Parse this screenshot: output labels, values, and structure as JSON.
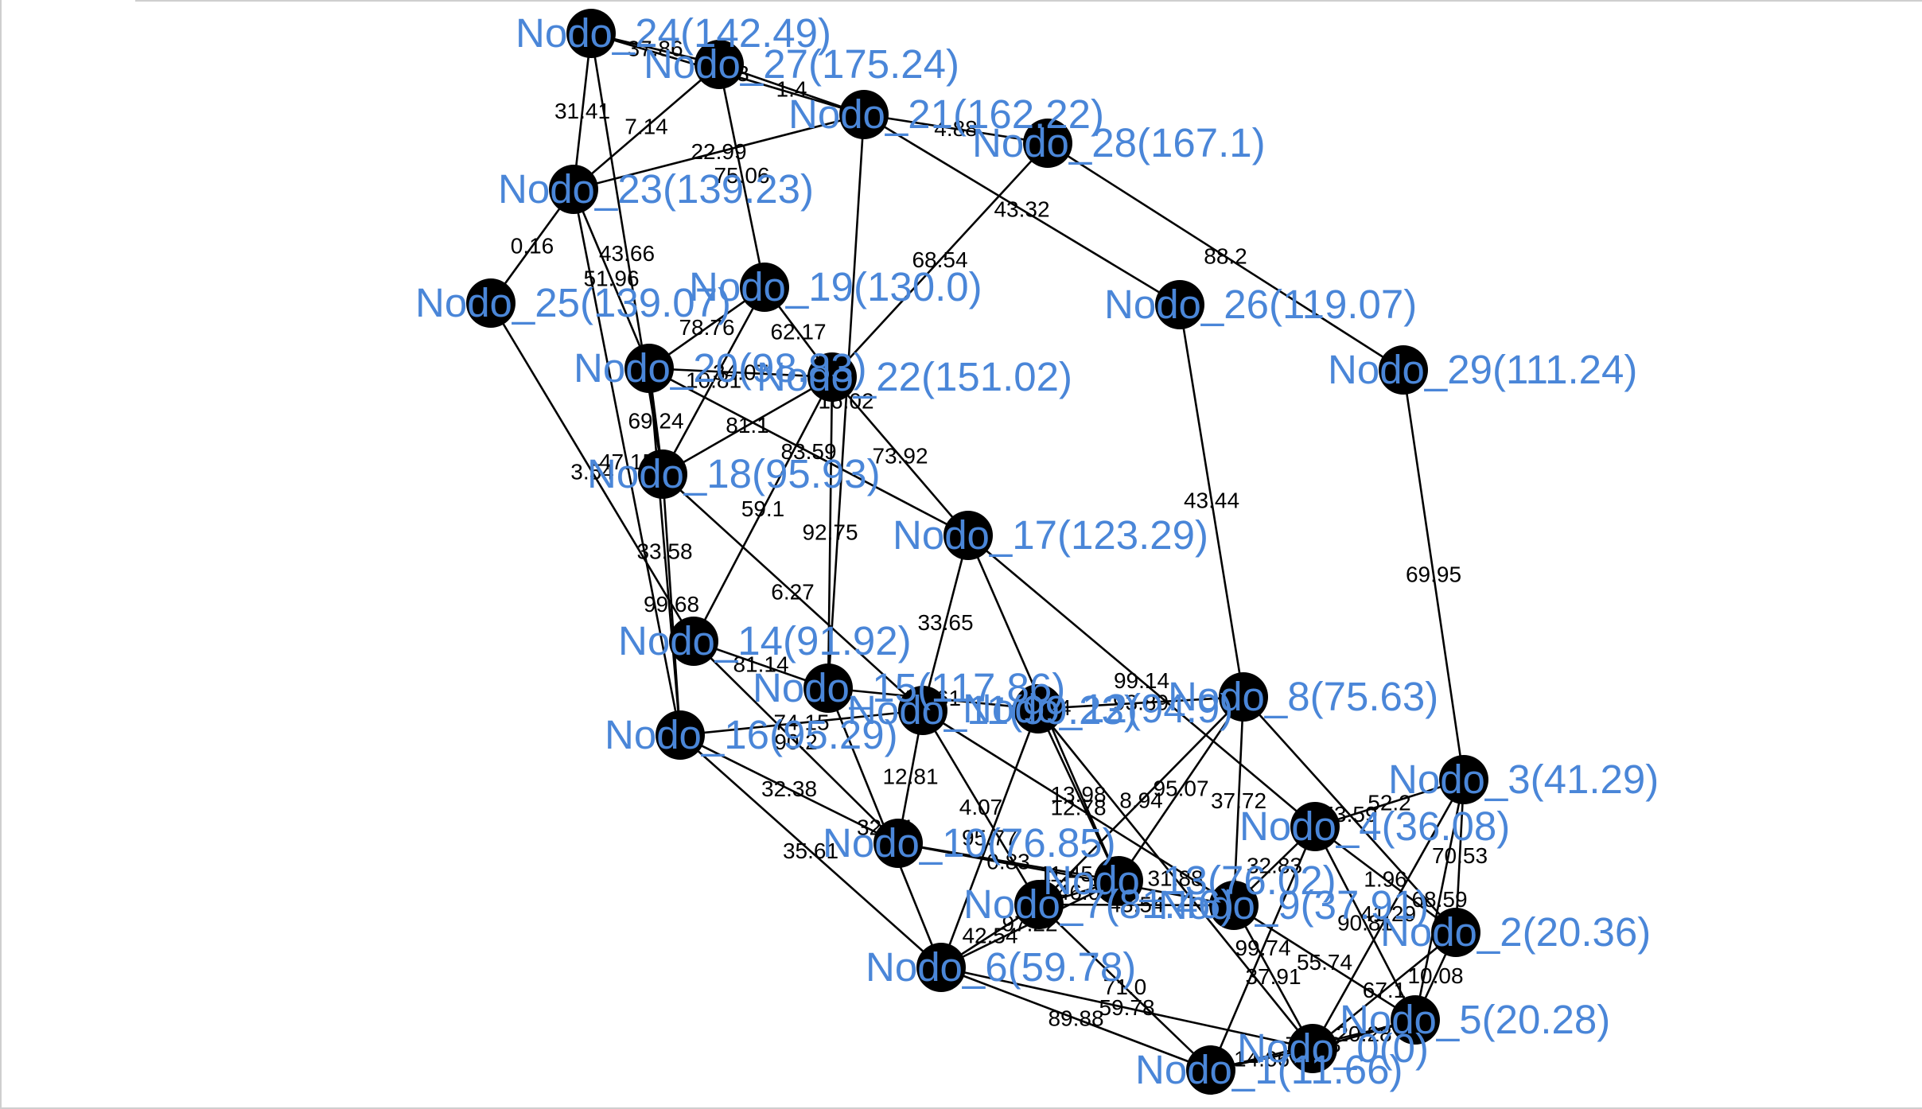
{
  "graph": {
    "colors": {
      "edge": "#000000",
      "node": "#000000",
      "node_label": "#4a86d8",
      "edge_label": "#000000"
    },
    "nodes": [
      {
        "id": 0,
        "label": "Nodo_0(0)"
      },
      {
        "id": 1,
        "label": "Nodo_1(11.66)"
      },
      {
        "id": 2,
        "label": "Nodo_2(20.36)"
      },
      {
        "id": 3,
        "label": "Nodo_3(41.29)"
      },
      {
        "id": 4,
        "label": "Nodo_4(36.08)"
      },
      {
        "id": 5,
        "label": "Nodo_5(20.28)"
      },
      {
        "id": 6,
        "label": "Nodo_6(59.78)"
      },
      {
        "id": 7,
        "label": "Nodo_7(81.46)"
      },
      {
        "id": 8,
        "label": "Nodo_8(75.63)"
      },
      {
        "id": 9,
        "label": "Nodo_9(37.91)"
      },
      {
        "id": 10,
        "label": "Nodo_10(76.85)"
      },
      {
        "id": 11,
        "label": "Nodo_11(99.23)"
      },
      {
        "id": 12,
        "label": "Nodo_12(94.9)"
      },
      {
        "id": 13,
        "label": "Nodo_13(76.02)"
      },
      {
        "id": 14,
        "label": "Nodo_14(91.92)"
      },
      {
        "id": 15,
        "label": "Nodo_15(117.86)"
      },
      {
        "id": 16,
        "label": "Nodo_16(95.29)"
      },
      {
        "id": 17,
        "label": "Nodo_17(123.29)"
      },
      {
        "id": 18,
        "label": "Nodo_18(95.93)"
      },
      {
        "id": 19,
        "label": "Nodo_19(130.0)"
      },
      {
        "id": 20,
        "label": "Nodo_20(98.83)"
      },
      {
        "id": 21,
        "label": "Nodo_21(162.22)"
      },
      {
        "id": 22,
        "label": "Nodo_22(151.02)"
      },
      {
        "id": 23,
        "label": "Nodo_23(139.23)"
      },
      {
        "id": 24,
        "label": "Nodo_24(142.49)"
      },
      {
        "id": 25,
        "label": "Nodo_25(139.07)"
      },
      {
        "id": 26,
        "label": "Nodo_26(119.07)"
      },
      {
        "id": 27,
        "label": "Nodo_27(175.24)"
      },
      {
        "id": 28,
        "label": "Nodo_28(167.1)"
      },
      {
        "id": 29,
        "label": "Nodo_29(111.24)"
      }
    ],
    "edges": [
      {
        "source": 24,
        "target": 27,
        "weight": "37.86"
      },
      {
        "source": 24,
        "target": 21,
        "weight": "8.23"
      },
      {
        "source": 24,
        "target": 23,
        "weight": "31.41"
      },
      {
        "source": 24,
        "target": 18,
        "weight": "43.66"
      },
      {
        "source": 27,
        "target": 21,
        "weight": "1.4"
      },
      {
        "source": 27,
        "target": 23,
        "weight": "7.14"
      },
      {
        "source": 27,
        "target": 19,
        "weight": "75.06"
      },
      {
        "source": 21,
        "target": 28,
        "weight": "4.88"
      },
      {
        "source": 21,
        "target": 23,
        "weight": "22.99"
      },
      {
        "source": 21,
        "target": 26,
        "weight": "43.32"
      },
      {
        "source": 21,
        "target": 15,
        "weight": "16.02"
      },
      {
        "source": 28,
        "target": 22,
        "weight": "68.54"
      },
      {
        "source": 28,
        "target": 29,
        "weight": "88.2"
      },
      {
        "source": 23,
        "target": 25,
        "weight": "0.16"
      },
      {
        "source": 23,
        "target": 20,
        "weight": "51.96"
      },
      {
        "source": 23,
        "target": 16,
        "weight": "47.15"
      },
      {
        "source": 25,
        "target": 14,
        "weight": "3.54"
      },
      {
        "source": 20,
        "target": 19,
        "weight": "78.76"
      },
      {
        "source": 20,
        "target": 22,
        "weight": "34.07"
      },
      {
        "source": 20,
        "target": 18,
        "weight": "69.24"
      },
      {
        "source": 20,
        "target": 17,
        "weight": "83.59"
      },
      {
        "source": 20,
        "target": 16,
        "weight": "33.58"
      },
      {
        "source": 19,
        "target": 22,
        "weight": "62.17"
      },
      {
        "source": 19,
        "target": 18,
        "weight": "10.81"
      },
      {
        "source": 22,
        "target": 17,
        "weight": "73.92"
      },
      {
        "source": 22,
        "target": 14,
        "weight": "59.1"
      },
      {
        "source": 22,
        "target": 15,
        "weight": "92.75"
      },
      {
        "source": 22,
        "target": 18,
        "weight": "81.1"
      },
      {
        "source": 18,
        "target": 11,
        "weight": "6.27"
      },
      {
        "source": 18,
        "target": 16,
        "weight": "99.68"
      },
      {
        "source": 17,
        "target": 11,
        "weight": "33.65"
      },
      {
        "source": 17,
        "target": 13,
        "weight": "51.44"
      },
      {
        "source": 17,
        "target": 4,
        "weight": "99.14"
      },
      {
        "source": 14,
        "target": 15,
        "weight": "81.14"
      },
      {
        "source": 14,
        "target": 10,
        "weight": "90.2"
      },
      {
        "source": 16,
        "target": 11,
        "weight": "74.15"
      },
      {
        "source": 16,
        "target": 10,
        "weight": "32.38"
      },
      {
        "source": 16,
        "target": 6,
        "weight": "35.61"
      },
      {
        "source": 15,
        "target": 12,
        "weight": "59.61"
      },
      {
        "source": 15,
        "target": 6,
        "weight": "32.14"
      },
      {
        "source": 11,
        "target": 10,
        "weight": "12.81"
      },
      {
        "source": 11,
        "target": 7,
        "weight": "4.07"
      },
      {
        "source": 11,
        "target": 9,
        "weight": "12.78"
      },
      {
        "source": 12,
        "target": 8,
        "weight": "93.89"
      },
      {
        "source": 12,
        "target": 6,
        "weight": "95.77"
      },
      {
        "source": 12,
        "target": 13,
        "weight": "13.98"
      },
      {
        "source": 12,
        "target": 0,
        "weight": "31.88"
      },
      {
        "source": 8,
        "target": 26,
        "weight": "43.44"
      },
      {
        "source": 8,
        "target": 13,
        "weight": "95.07"
      },
      {
        "source": 8,
        "target": 7,
        "weight": "8.94"
      },
      {
        "source": 8,
        "target": 9,
        "weight": "37.72"
      },
      {
        "source": 8,
        "target": 2,
        "weight": "53.59"
      },
      {
        "source": 3,
        "target": 29,
        "weight": "69.95"
      },
      {
        "source": 3,
        "target": 4,
        "weight": "52.2"
      },
      {
        "source": 3,
        "target": 2,
        "weight": "70.53"
      },
      {
        "source": 3,
        "target": 5,
        "weight": "68.59"
      },
      {
        "source": 3,
        "target": 0,
        "weight": "41.29"
      },
      {
        "source": 4,
        "target": 9,
        "weight": "32.83"
      },
      {
        "source": 4,
        "target": 2,
        "weight": "1.96"
      },
      {
        "source": 4,
        "target": 5,
        "weight": "90.81"
      },
      {
        "source": 4,
        "target": 1,
        "weight": "99.74"
      },
      {
        "source": 10,
        "target": 13,
        "weight": "0.83"
      },
      {
        "source": 10,
        "target": 9,
        "weight": "11.45"
      },
      {
        "source": 7,
        "target": 13,
        "weight": "46.0"
      },
      {
        "source": 7,
        "target": 9,
        "weight": "43.54"
      },
      {
        "source": 7,
        "target": 6,
        "weight": "42.54"
      },
      {
        "source": 6,
        "target": 13,
        "weight": "97.22"
      },
      {
        "source": 6,
        "target": 1,
        "weight": "89.88"
      },
      {
        "source": 6,
        "target": 0,
        "weight": "59.78"
      },
      {
        "source": 7,
        "target": 1,
        "weight": "71.0"
      },
      {
        "source": 9,
        "target": 0,
        "weight": "37.91"
      },
      {
        "source": 9,
        "target": 5,
        "weight": "55.74"
      },
      {
        "source": 2,
        "target": 0,
        "weight": "67.1"
      },
      {
        "source": 2,
        "target": 5,
        "weight": "10.08"
      },
      {
        "source": 5,
        "target": 0,
        "weight": "20.28"
      },
      {
        "source": 1,
        "target": 0,
        "weight": "14.66"
      },
      {
        "source": 1,
        "target": 5,
        "weight": "73.08"
      }
    ]
  }
}
